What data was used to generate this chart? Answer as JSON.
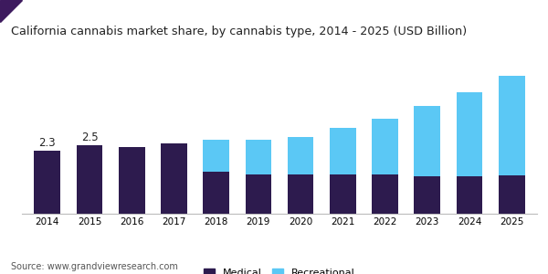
{
  "title": "California cannabis market share, by cannabis type, 2014 - 2025 (USD Billion)",
  "years": [
    2014,
    2015,
    2016,
    2017,
    2018,
    2019,
    2020,
    2021,
    2022,
    2023,
    2024,
    2025
  ],
  "medical": [
    2.3,
    2.5,
    2.42,
    2.58,
    1.55,
    1.42,
    1.45,
    1.43,
    1.42,
    1.38,
    1.37,
    1.4
  ],
  "recreational": [
    0.0,
    0.0,
    0.0,
    0.0,
    1.15,
    1.28,
    1.35,
    1.72,
    2.05,
    2.55,
    3.05,
    3.65
  ],
  "annotations": {
    "2014": "2.3",
    "2015": "2.5"
  },
  "medical_color": "#2d1b4e",
  "recreational_color": "#5bc8f5",
  "header_bg_color": "#ebebeb",
  "header_accent_color": "#3d1a5e",
  "title_color": "#222222",
  "source_text": "Source: www.grandviewresearch.com",
  "bar_width": 0.62,
  "ylim": [
    0,
    5.5
  ],
  "legend_labels": [
    "Medical",
    "Recreational"
  ],
  "source_fontsize": 7,
  "tick_fontsize": 7.5,
  "title_fontsize": 9.2,
  "annot_fontsize": 8.5
}
